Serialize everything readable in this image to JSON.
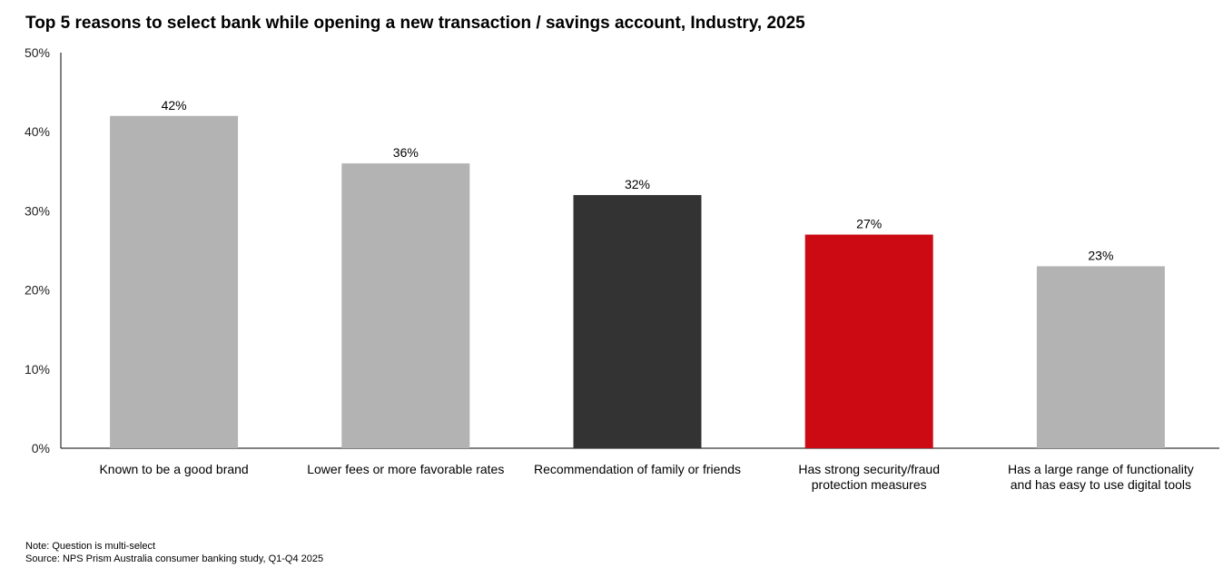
{
  "chart_data": {
    "type": "bar",
    "title": "Top 5 reasons to select bank while opening a new transaction / savings account, Industry, 2025",
    "categories": [
      [
        "Known to be a good brand"
      ],
      [
        "Lower fees or more favorable rates"
      ],
      [
        "Recommendation of family or friends"
      ],
      [
        "Has strong security/fraud",
        "protection measures"
      ],
      [
        "Has a large range of functionality",
        "and has easy to use digital tools"
      ]
    ],
    "values": [
      42,
      36,
      32,
      27,
      23
    ],
    "data_labels": [
      "42%",
      "36%",
      "32%",
      "27%",
      "23%"
    ],
    "colors": [
      "#b3b3b3",
      "#b3b3b3",
      "#333333",
      "#cc0a14",
      "#b3b3b3"
    ],
    "ylim": [
      0,
      50
    ],
    "yticks": [
      "0%",
      "10%",
      "20%",
      "30%",
      "40%",
      "50%"
    ],
    "xlabel": "",
    "ylabel": "",
    "grid": false
  },
  "notes": {
    "note": "Note: Question is multi-select",
    "source": "Source: NPS Prism Australia consumer banking study, Q1-Q4 2025"
  }
}
